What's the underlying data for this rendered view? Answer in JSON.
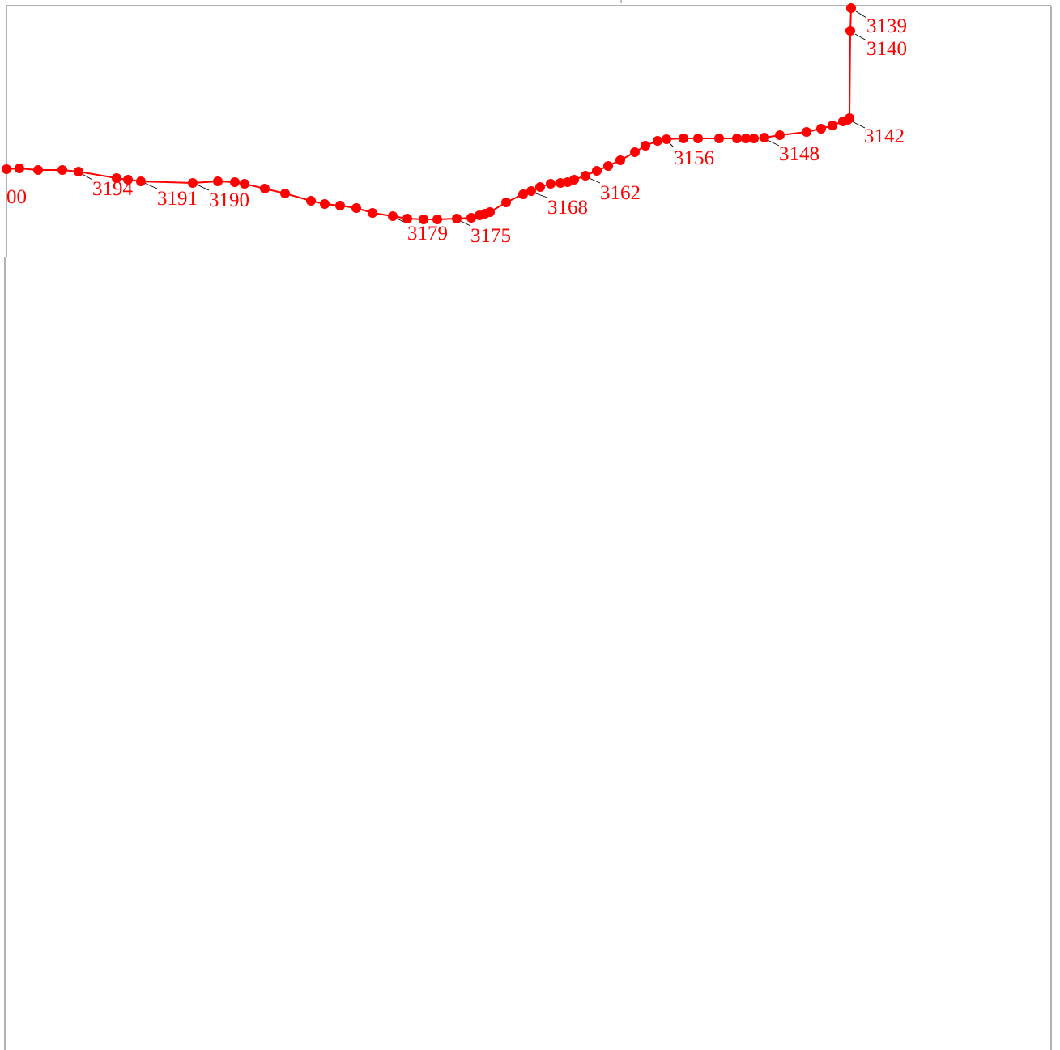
{
  "map": {
    "route_color": "#ff0000",
    "leader_color": "#000000",
    "frame_color": "#808080",
    "station_labels": [
      {
        "id": "3139",
        "text": "3139"
      },
      {
        "id": "3140",
        "text": "3140"
      },
      {
        "id": "3142",
        "text": "3142"
      },
      {
        "id": "3148",
        "text": "3148"
      },
      {
        "id": "3156",
        "text": "3156"
      },
      {
        "id": "3162",
        "text": "3162"
      },
      {
        "id": "3168",
        "text": "3168"
      },
      {
        "id": "3175",
        "text": "3175"
      },
      {
        "id": "3179",
        "text": "3179"
      },
      {
        "id": "3190",
        "text": "3190"
      },
      {
        "id": "3191",
        "text": "3191"
      },
      {
        "id": "3194",
        "text": "3194"
      },
      {
        "id": "3200-partial",
        "text": "00"
      }
    ]
  }
}
